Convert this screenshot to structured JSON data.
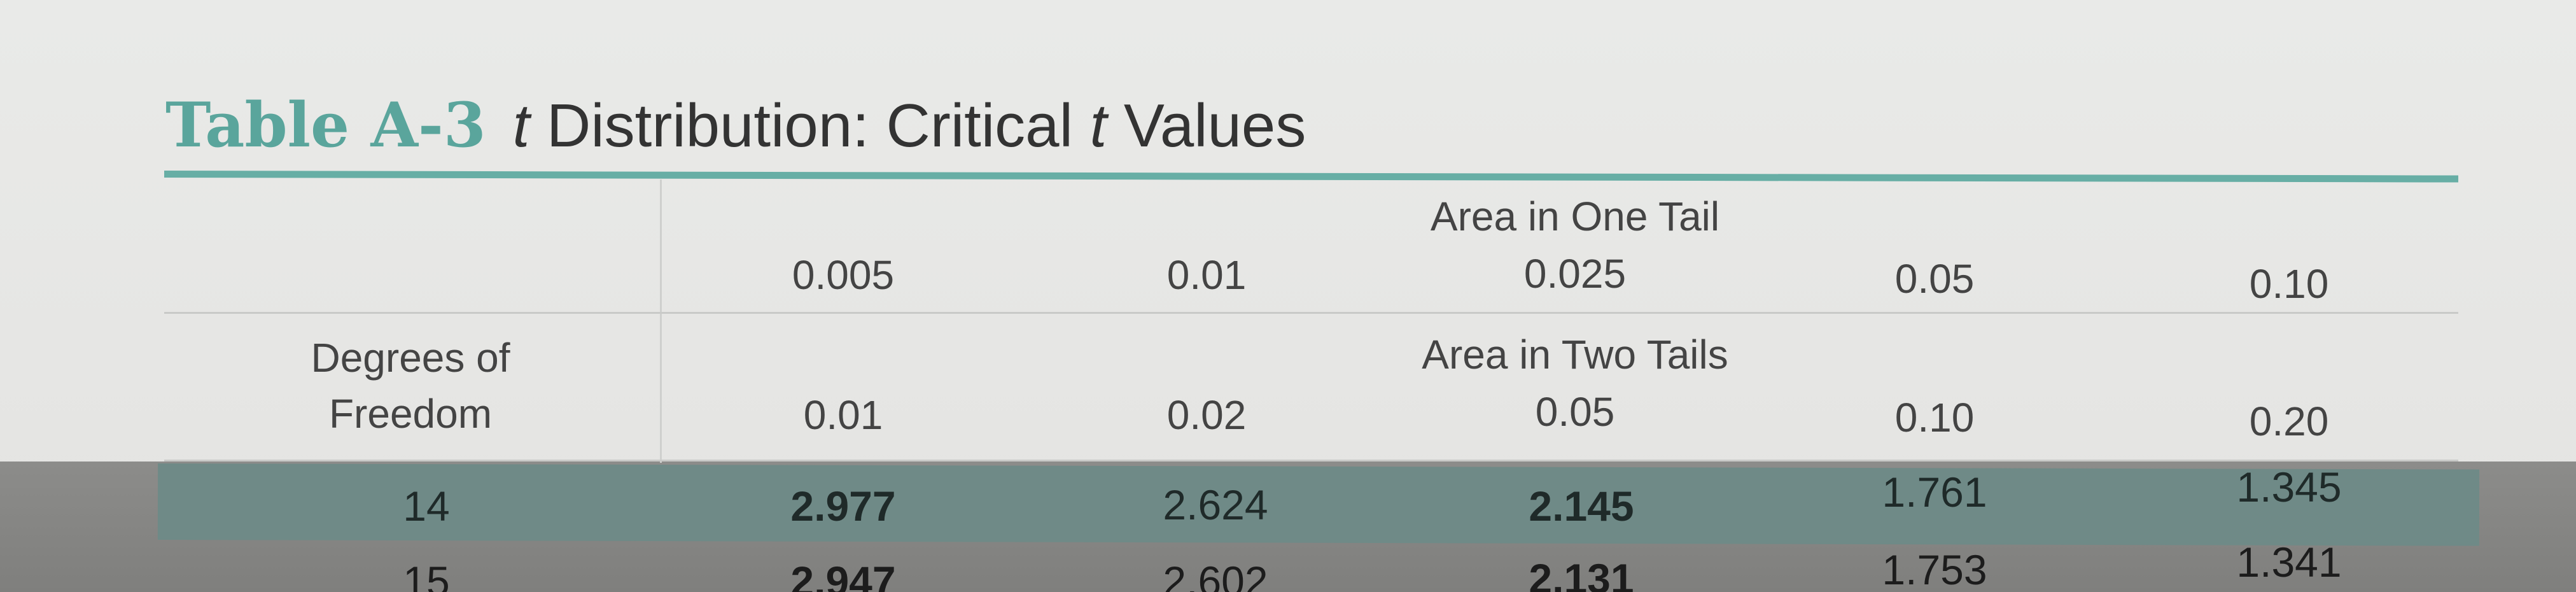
{
  "title": {
    "prefix": "Table A-3",
    "italic_t1": "t",
    "middle": " Distribution: Critical ",
    "italic_t2": "t",
    "suffix": " Values"
  },
  "header": {
    "one_tail_label": "Area in One Tail",
    "one_tail_values": [
      "0.005",
      "0.01",
      "0.025",
      "0.05",
      "0.10"
    ],
    "two_tails_label": "Area in Two Tails",
    "two_tails_values": [
      "0.01",
      "0.02",
      "0.05",
      "0.10",
      "0.20"
    ],
    "df_label_line1": "Degrees of",
    "df_label_line2": "Freedom"
  },
  "rows": [
    {
      "df": "14",
      "values": [
        "2.977",
        "2.624",
        "2.145",
        "1.761",
        "1.345"
      ]
    },
    {
      "df": "15",
      "values": [
        "2.947",
        "2.602",
        "2.131",
        "1.753",
        "1.341"
      ]
    }
  ],
  "colors": {
    "accent": "#5aa59c",
    "rule": "#67aea5",
    "highlight_row": "#6f8a87"
  }
}
